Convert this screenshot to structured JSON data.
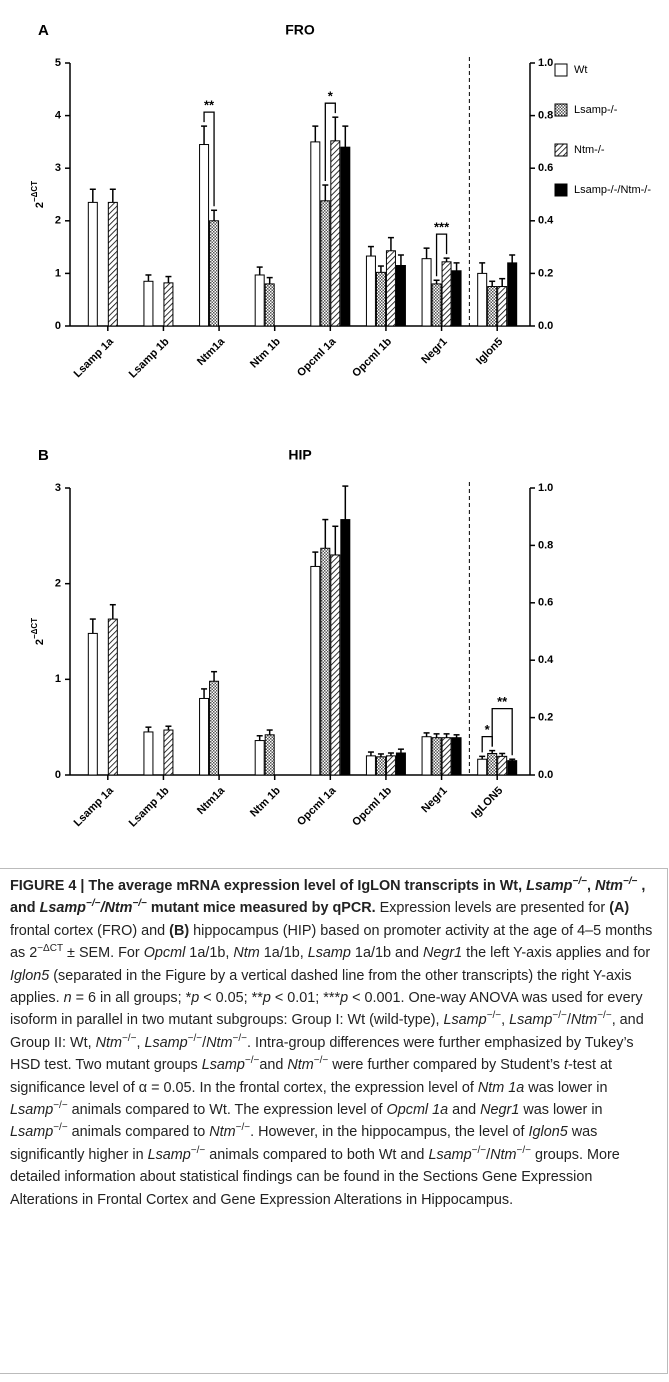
{
  "chart_data": [
    {
      "type": "bar",
      "panel": "A",
      "title": "FRO",
      "ylabel": "2",
      "ylabel_sup": "−ΔCT",
      "categories": [
        "Lsamp 1a",
        "Lsamp 1b",
        "Ntm1a",
        "Ntm 1b",
        "Opcml 1a",
        "Opcml 1b",
        "Negr1",
        "Iglon5"
      ],
      "axis_by_category": [
        "y",
        "y",
        "y",
        "y",
        "y",
        "y",
        "y",
        "y2"
      ],
      "ylim": [
        0,
        5
      ],
      "yticks": [
        0,
        1,
        2,
        3,
        4,
        5
      ],
      "y2lim": [
        0,
        1
      ],
      "y2ticks": [
        {
          "value": 0,
          "label": "0.0"
        },
        0.2,
        0.4,
        0.6,
        0.8,
        {
          "value": 1,
          "label": "1.0"
        }
      ],
      "legend": true,
      "series": [
        {
          "name": "Wt",
          "color": "#ffffff",
          "pattern": "solid",
          "values": [
            2.35,
            0.85,
            3.45,
            0.97,
            3.5,
            1.33,
            1.28,
            0.2
          ],
          "errors": [
            0.25,
            0.12,
            0.35,
            0.15,
            0.3,
            0.18,
            0.2,
            0.04
          ]
        },
        {
          "name": "Lsamp-/-",
          "color": "#888888",
          "pattern": "dots",
          "values": [
            null,
            null,
            2.0,
            0.8,
            2.38,
            1.02,
            0.8,
            0.15
          ],
          "errors": [
            null,
            null,
            0.2,
            0.12,
            0.3,
            0.12,
            0.07,
            0.02
          ]
        },
        {
          "name": "Ntm-/-",
          "color": "#000000",
          "pattern": "hatch",
          "values": [
            2.35,
            0.82,
            null,
            null,
            3.52,
            1.43,
            1.22,
            0.15
          ],
          "errors": [
            0.25,
            0.12,
            null,
            null,
            0.45,
            0.25,
            0.07,
            0.03
          ]
        },
        {
          "name": "Lsamp-/-/Ntm-/-",
          "color": "#000000",
          "pattern": "solid",
          "values": [
            null,
            null,
            null,
            null,
            3.4,
            1.15,
            1.05,
            0.24
          ],
          "errors": [
            null,
            null,
            null,
            null,
            0.4,
            0.2,
            0.15,
            0.03
          ]
        }
      ],
      "annotations": [
        {
          "category": 2,
          "from": 0,
          "to": 1,
          "label": "**"
        },
        {
          "category": 4,
          "from": 1,
          "to": 2,
          "label": "*"
        },
        {
          "category": 6,
          "from": 1,
          "to": 2,
          "label": "***"
        }
      ]
    },
    {
      "type": "bar",
      "panel": "B",
      "title": "HIP",
      "ylabel": "2",
      "ylabel_sup": "−ΔCT",
      "categories": [
        "Lsamp 1a",
        "Lsamp 1b",
        "Ntm1a",
        "Ntm 1b",
        "Opcml 1a",
        "Opcml 1b",
        "Negr1",
        "IgLON5"
      ],
      "axis_by_category": [
        "y",
        "y",
        "y",
        "y",
        "y",
        "y",
        "y",
        "y2"
      ],
      "ylim": [
        0,
        3
      ],
      "yticks": [
        0,
        1,
        2,
        3
      ],
      "y2lim": [
        0,
        1
      ],
      "y2ticks": [
        {
          "value": 0,
          "label": "0.0"
        },
        0.2,
        0.4,
        0.6,
        0.8,
        {
          "value": 1,
          "label": "1.0"
        }
      ],
      "series": [
        {
          "color": "#ffffff",
          "pattern": "solid",
          "values": [
            1.48,
            0.45,
            0.8,
            0.36,
            2.18,
            0.2,
            0.4,
            0.055
          ],
          "errors": [
            0.15,
            0.05,
            0.1,
            0.05,
            0.15,
            0.04,
            0.04,
            0.01
          ]
        },
        {
          "color": "#888888",
          "pattern": "dots",
          "values": [
            null,
            null,
            0.98,
            0.42,
            2.37,
            0.19,
            0.39,
            0.075
          ],
          "errors": [
            null,
            null,
            0.1,
            0.05,
            0.3,
            0.03,
            0.04,
            0.01
          ]
        },
        {
          "color": "#000000",
          "pattern": "hatch",
          "values": [
            1.63,
            0.47,
            null,
            null,
            2.3,
            0.2,
            0.39,
            0.065
          ],
          "errors": [
            0.15,
            0.04,
            null,
            null,
            0.3,
            0.03,
            0.04,
            0.01
          ]
        },
        {
          "color": "#000000",
          "pattern": "solid",
          "values": [
            null,
            null,
            null,
            null,
            2.67,
            0.23,
            0.39,
            0.05
          ],
          "errors": [
            null,
            null,
            null,
            null,
            0.35,
            0.04,
            0.03,
            0.005
          ]
        }
      ],
      "annotations": [
        {
          "category": 7,
          "from": 0,
          "to": 1,
          "label": "*"
        },
        {
          "category": 7,
          "from": 1,
          "to": 3,
          "label": "**"
        }
      ]
    }
  ],
  "caption": [
    {
      "t": "FIGURE 4 | The average mRNA expression level of IgLON transcripts in Wt, ",
      "s": "b"
    },
    {
      "t": "Lsamp",
      "s": "bi"
    },
    {
      "t": "−/−",
      "s": "bsup"
    },
    {
      "t": ", ",
      "s": "b"
    },
    {
      "t": "Ntm",
      "s": "bi"
    },
    {
      "t": "−/−",
      "s": "bsup"
    },
    {
      "t": " , and ",
      "s": "b"
    },
    {
      "t": "Lsamp",
      "s": "bi"
    },
    {
      "t": "−/−",
      "s": "bsup"
    },
    {
      "t": "/",
      "s": "bi"
    },
    {
      "t": "Ntm",
      "s": "bi"
    },
    {
      "t": "−/−",
      "s": "bsup"
    },
    {
      "t": " mutant mice measured by qPCR.",
      "s": "b"
    },
    {
      "t": " Expression levels are presented for "
    },
    {
      "t": "(A)",
      "s": "b"
    },
    {
      "t": " frontal cortex (FRO) and "
    },
    {
      "t": "(B)",
      "s": "b"
    },
    {
      "t": " hippocampus (HIP) based on promoter activity at the age of 4–5 months as 2"
    },
    {
      "t": "−ΔCT",
      "s": "sup"
    },
    {
      "t": " ± SEM. For "
    },
    {
      "t": "Opcml",
      "s": "i"
    },
    {
      "t": " 1a/1b, "
    },
    {
      "t": "Ntm",
      "s": "i"
    },
    {
      "t": " 1a/1b, "
    },
    {
      "t": "Lsamp",
      "s": "i"
    },
    {
      "t": " 1a/1b and "
    },
    {
      "t": "Negr1",
      "s": "i"
    },
    {
      "t": " the left Y-axis applies and for "
    },
    {
      "t": "Iglon5",
      "s": "i"
    },
    {
      "t": " (separated in the Figure by a vertical dashed line from the other transcripts) the right Y-axis applies. "
    },
    {
      "t": "n",
      "s": "i"
    },
    {
      "t": " = 6 in all groups; *"
    },
    {
      "t": "p",
      "s": "i"
    },
    {
      "t": " < 0.05; **"
    },
    {
      "t": "p",
      "s": "i"
    },
    {
      "t": " < 0.01; ***"
    },
    {
      "t": "p",
      "s": "i"
    },
    {
      "t": " < 0.001. One-way ANOVA was used for every isoform in parallel in two mutant subgroups: Group I: Wt (wild-type), "
    },
    {
      "t": "Lsamp",
      "s": "i"
    },
    {
      "t": "−/−",
      "s": "sup"
    },
    {
      "t": ", "
    },
    {
      "t": "Lsamp",
      "s": "i"
    },
    {
      "t": "−/−",
      "s": "sup"
    },
    {
      "t": "/"
    },
    {
      "t": "Ntm",
      "s": "i"
    },
    {
      "t": "−/−",
      "s": "sup"
    },
    {
      "t": ", and Group II: Wt, "
    },
    {
      "t": "Ntm",
      "s": "i"
    },
    {
      "t": "−/−",
      "s": "sup"
    },
    {
      "t": ", "
    },
    {
      "t": "Lsamp",
      "s": "i"
    },
    {
      "t": "−/−",
      "s": "sup"
    },
    {
      "t": "/"
    },
    {
      "t": "Ntm",
      "s": "i"
    },
    {
      "t": "−/−",
      "s": "sup"
    },
    {
      "t": ". Intra-group differences were further emphasized by Tukey’s HSD test. Two mutant groups "
    },
    {
      "t": "Lsamp",
      "s": "i"
    },
    {
      "t": "−/−",
      "s": "sup"
    },
    {
      "t": "and "
    },
    {
      "t": "Ntm",
      "s": "i"
    },
    {
      "t": "−/−",
      "s": "sup"
    },
    {
      "t": " were further compared by Student’s "
    },
    {
      "t": "t",
      "s": "i"
    },
    {
      "t": "-test at significance level of α = 0.05. In the frontal cortex, the expression level of "
    },
    {
      "t": "Ntm 1a",
      "s": "i"
    },
    {
      "t": " was lower in "
    },
    {
      "t": "Lsamp",
      "s": "i"
    },
    {
      "t": "−/−",
      "s": "sup"
    },
    {
      "t": " animals compared to Wt. The expression level of "
    },
    {
      "t": "Opcml 1a",
      "s": "i"
    },
    {
      "t": " and "
    },
    {
      "t": "Negr1",
      "s": "i"
    },
    {
      "t": " was lower in "
    },
    {
      "t": "Lsamp",
      "s": "i"
    },
    {
      "t": "−/−",
      "s": "sup"
    },
    {
      "t": " animals compared to "
    },
    {
      "t": "Ntm",
      "s": "i"
    },
    {
      "t": "−/−",
      "s": "sup"
    },
    {
      "t": ". However, in the hippocampus, the level of "
    },
    {
      "t": "Iglon5",
      "s": "i"
    },
    {
      "t": " was significantly higher in "
    },
    {
      "t": "Lsamp",
      "s": "i"
    },
    {
      "t": "−/−",
      "s": "sup"
    },
    {
      "t": " animals compared to both Wt and "
    },
    {
      "t": "Lsamp",
      "s": "i"
    },
    {
      "t": "−/−",
      "s": "sup"
    },
    {
      "t": "/"
    },
    {
      "t": "Ntm",
      "s": "i"
    },
    {
      "t": "−/−",
      "s": "sup"
    },
    {
      "t": " groups. More detailed information about statistical findings can be found in the Sections Gene Expression Alterations in Frontal Cortex and Gene Expression Alterations in Hippocampus."
    }
  ]
}
